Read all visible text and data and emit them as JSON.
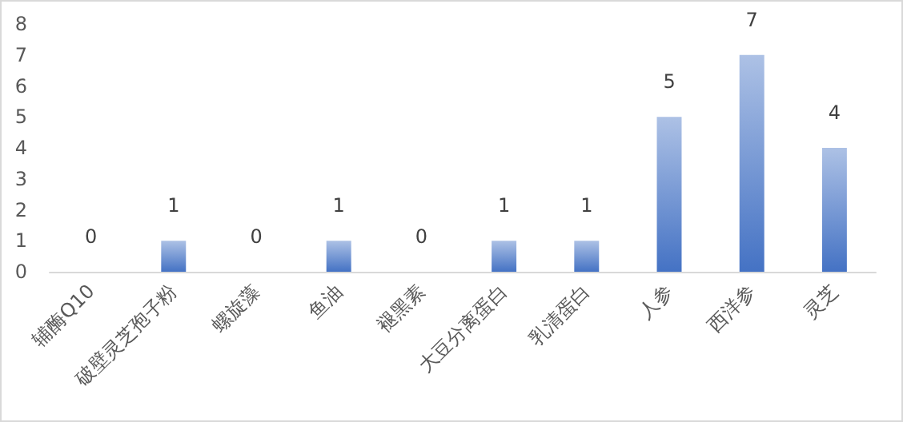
{
  "chart_data": {
    "type": "bar",
    "categories": [
      "辅酶Q10",
      "破壁灵芝孢子粉",
      "螺旋藻",
      "鱼油",
      "褪黑素",
      "大豆分离蛋白",
      "乳清蛋白",
      "人参",
      "西洋参",
      "灵芝"
    ],
    "values": [
      0,
      1,
      0,
      1,
      0,
      1,
      1,
      5,
      7,
      4
    ],
    "color": "#4472c4",
    "ylim": [
      0,
      8
    ],
    "yticks": [
      0,
      1,
      2,
      3,
      4,
      5,
      6,
      7,
      8
    ],
    "grid": false,
    "data_labels": true
  }
}
